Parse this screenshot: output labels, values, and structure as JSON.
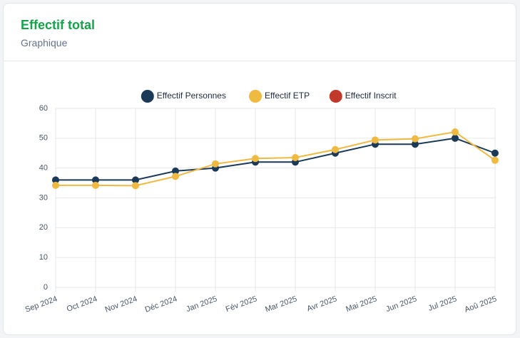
{
  "header": {
    "title": "Effectif total",
    "subtitle": "Graphique"
  },
  "chart_data": {
    "type": "line",
    "categories": [
      "Sep 2024",
      "Oct 2024",
      "Nov 2024",
      "Déc 2024",
      "Jan 2025",
      "Fév 2025",
      "Mar 2025",
      "Avr 2025",
      "Mai 2025",
      "Jun 2025",
      "Jul 2025",
      "Aoû 2025"
    ],
    "series": [
      {
        "name": "Effectif Personnes",
        "color": "#1b3a57",
        "values": [
          36,
          36,
          36,
          39,
          40,
          42,
          42,
          45,
          48,
          48,
          50,
          45
        ]
      },
      {
        "name": "Effectif ETP",
        "color": "#f0b942",
        "values": [
          34.2,
          34.2,
          34.1,
          37.2,
          41.4,
          43.2,
          43.5,
          46.2,
          49.4,
          49.8,
          52.1,
          42.6
        ]
      },
      {
        "name": "Effectif Inscrit",
        "color": "#c0392b",
        "values": [
          null,
          null,
          null,
          null,
          null,
          null,
          null,
          null,
          null,
          null,
          null,
          null
        ]
      }
    ],
    "ylim": [
      0,
      60
    ],
    "yticks": [
      0,
      10,
      20,
      30,
      40,
      50,
      60
    ],
    "grid": true
  }
}
